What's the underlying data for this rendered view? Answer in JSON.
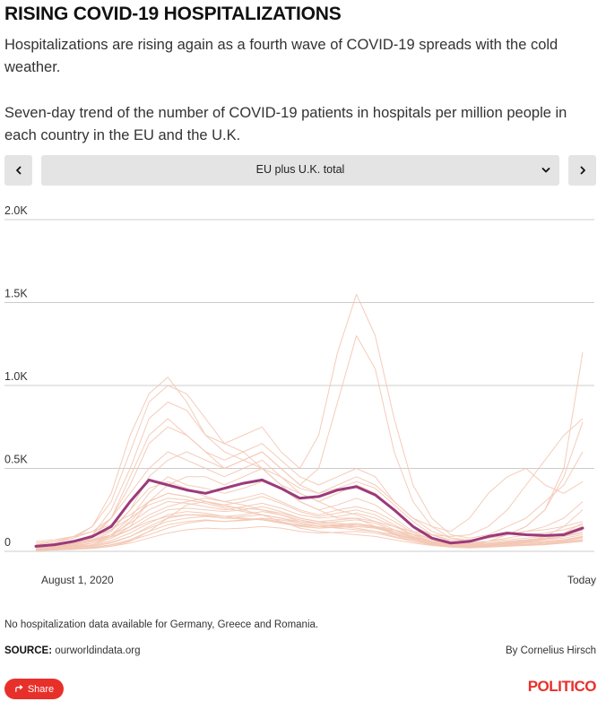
{
  "header": {
    "title": "RISING COVID-19 HOSPITALIZATIONS",
    "subtitle1": "Hospitalizations are rising again as a fourth wave of COVID-19 spreads with the cold weather.",
    "subtitle2": "Seven-day trend of the number of COVID-19 patients in hospitals per million people in each country in the EU and the U.K."
  },
  "controls": {
    "prev_icon": "chevron-left-icon",
    "next_icon": "chevron-right-icon",
    "dropdown_icon": "chevron-down-icon",
    "selected": "EU plus U.K. total"
  },
  "colors": {
    "highlight": "#9b3a7b",
    "background_series": "#f3c6b2",
    "grid": "#cccccc",
    "brand": "#e8302a"
  },
  "chart_data": {
    "type": "line",
    "x_start_label": "August 1, 2020",
    "x_end_label": "Today",
    "ylim": [
      0,
      2000
    ],
    "yticks": [
      {
        "value": 0,
        "label": "0"
      },
      {
        "value": 500,
        "label": "0.5K"
      },
      {
        "value": 1000,
        "label": "1.0K"
      },
      {
        "value": 1500,
        "label": "1.5K"
      },
      {
        "value": 2000,
        "label": "2.0K"
      }
    ],
    "x_count": 30,
    "highlight": {
      "name": "EU plus U.K. total",
      "values": [
        30,
        40,
        60,
        90,
        150,
        300,
        430,
        400,
        370,
        350,
        380,
        410,
        430,
        380,
        320,
        330,
        370,
        390,
        340,
        250,
        150,
        80,
        50,
        60,
        90,
        110,
        100,
        95,
        100,
        140
      ]
    },
    "background_series": [
      [
        30,
        50,
        80,
        150,
        350,
        700,
        950,
        1050,
        900,
        700,
        600,
        550,
        500,
        400,
        300,
        250,
        200,
        200,
        150,
        100,
        60,
        40,
        30,
        40,
        60,
        100,
        150,
        250,
        500,
        1200
      ],
      [
        20,
        30,
        50,
        100,
        250,
        500,
        800,
        900,
        850,
        700,
        650,
        700,
        750,
        600,
        500,
        700,
        1200,
        1550,
        1300,
        800,
        400,
        200,
        100,
        80,
        100,
        150,
        200,
        300,
        400,
        600
      ],
      [
        10,
        20,
        40,
        80,
        200,
        450,
        700,
        800,
        700,
        600,
        500,
        550,
        600,
        500,
        400,
        500,
        900,
        1300,
        1100,
        600,
        300,
        150,
        80,
        60,
        80,
        100,
        150,
        250,
        450,
        780
      ],
      [
        40,
        60,
        90,
        150,
        300,
        600,
        900,
        1000,
        950,
        800,
        650,
        600,
        500,
        400,
        350,
        300,
        250,
        220,
        180,
        150,
        120,
        100,
        90,
        100,
        150,
        250,
        400,
        550,
        700,
        800
      ],
      [
        30,
        40,
        60,
        100,
        200,
        400,
        650,
        750,
        700,
        600,
        550,
        600,
        650,
        550,
        450,
        400,
        450,
        500,
        450,
        300,
        200,
        150,
        120,
        200,
        350,
        450,
        500,
        400,
        350,
        420
      ],
      [
        20,
        30,
        40,
        60,
        120,
        250,
        450,
        550,
        600,
        550,
        500,
        550,
        600,
        500,
        400,
        350,
        400,
        450,
        400,
        300,
        200,
        120,
        80,
        70,
        80,
        100,
        120,
        150,
        200,
        300
      ],
      [
        50,
        60,
        80,
        120,
        200,
        350,
        500,
        600,
        550,
        500,
        450,
        500,
        550,
        450,
        350,
        300,
        350,
        400,
        350,
        250,
        150,
        100,
        70,
        60,
        80,
        100,
        120,
        130,
        150,
        180
      ],
      [
        10,
        15,
        20,
        40,
        80,
        150,
        300,
        400,
        450,
        450,
        400,
        450,
        500,
        450,
        380,
        350,
        380,
        420,
        380,
        280,
        180,
        100,
        60,
        50,
        60,
        80,
        100,
        110,
        130,
        160
      ],
      [
        20,
        25,
        30,
        50,
        100,
        200,
        350,
        450,
        400,
        380,
        350,
        380,
        420,
        380,
        300,
        250,
        280,
        320,
        280,
        200,
        120,
        70,
        40,
        30,
        40,
        50,
        60,
        70,
        90,
        120
      ],
      [
        30,
        35,
        45,
        70,
        130,
        250,
        380,
        420,
        380,
        330,
        300,
        320,
        350,
        300,
        250,
        220,
        250,
        270,
        240,
        180,
        110,
        70,
        50,
        45,
        50,
        60,
        70,
        80,
        100,
        130
      ],
      [
        15,
        20,
        30,
        50,
        90,
        180,
        300,
        350,
        330,
        300,
        280,
        300,
        330,
        290,
        240,
        210,
        230,
        250,
        220,
        160,
        100,
        60,
        40,
        35,
        40,
        50,
        60,
        70,
        80,
        100
      ],
      [
        25,
        30,
        40,
        60,
        100,
        170,
        250,
        300,
        290,
        270,
        250,
        270,
        290,
        260,
        220,
        200,
        210,
        230,
        200,
        150,
        100,
        60,
        45,
        40,
        45,
        55,
        65,
        75,
        90,
        110
      ],
      [
        20,
        25,
        35,
        50,
        80,
        130,
        200,
        250,
        260,
        250,
        240,
        250,
        270,
        240,
        200,
        180,
        190,
        200,
        180,
        130,
        90,
        55,
        40,
        35,
        40,
        45,
        55,
        60,
        70,
        90
      ],
      [
        10,
        15,
        20,
        30,
        50,
        90,
        150,
        200,
        220,
        220,
        210,
        220,
        240,
        220,
        190,
        170,
        180,
        190,
        170,
        120,
        80,
        50,
        35,
        30,
        35,
        40,
        45,
        50,
        60,
        80
      ],
      [
        60,
        70,
        90,
        120,
        160,
        220,
        300,
        350,
        330,
        300,
        270,
        260,
        250,
        230,
        200,
        180,
        170,
        160,
        150,
        130,
        100,
        80,
        60,
        55,
        60,
        70,
        80,
        90,
        110,
        150
      ],
      [
        5,
        10,
        15,
        25,
        40,
        70,
        120,
        160,
        180,
        190,
        180,
        190,
        200,
        190,
        170,
        150,
        160,
        170,
        150,
        110,
        70,
        45,
        30,
        25,
        30,
        35,
        40,
        45,
        55,
        70
      ],
      [
        40,
        45,
        55,
        70,
        100,
        150,
        220,
        270,
        300,
        320,
        300,
        280,
        250,
        220,
        180,
        160,
        150,
        140,
        120,
        100,
        80,
        60,
        50,
        45,
        50,
        60,
        70,
        80,
        100,
        130
      ],
      [
        10,
        12,
        15,
        20,
        30,
        60,
        120,
        200,
        280,
        300,
        280,
        250,
        220,
        180,
        140,
        120,
        110,
        100,
        90,
        70,
        50,
        35,
        25,
        20,
        25,
        30,
        35,
        40,
        50,
        60
      ],
      [
        15,
        20,
        25,
        35,
        55,
        90,
        140,
        180,
        200,
        210,
        200,
        210,
        220,
        200,
        170,
        150,
        140,
        130,
        120,
        90,
        60,
        40,
        30,
        28,
        30,
        35,
        40,
        45,
        55,
        70
      ],
      [
        30,
        40,
        60,
        90,
        130,
        200,
        280,
        320,
        310,
        290,
        260,
        240,
        220,
        200,
        180,
        170,
        160,
        150,
        140,
        120,
        90,
        60,
        40,
        35,
        40,
        45,
        50,
        55,
        65,
        85
      ],
      [
        5,
        8,
        12,
        18,
        30,
        50,
        80,
        110,
        130,
        140,
        135,
        140,
        150,
        140,
        120,
        110,
        115,
        120,
        110,
        85,
        60,
        40,
        28,
        24,
        28,
        32,
        38,
        42,
        50,
        65
      ],
      [
        20,
        22,
        28,
        40,
        65,
        110,
        170,
        220,
        240,
        230,
        210,
        200,
        190,
        170,
        150,
        140,
        145,
        150,
        140,
        110,
        75,
        50,
        35,
        30,
        35,
        45,
        60,
        80,
        110,
        170
      ],
      [
        35,
        40,
        50,
        65,
        90,
        130,
        180,
        210,
        220,
        215,
        200,
        195,
        190,
        175,
        160,
        150,
        155,
        160,
        150,
        120,
        85,
        55,
        40,
        35,
        40,
        50,
        55,
        60,
        70,
        90
      ],
      [
        8,
        10,
        14,
        22,
        38,
        65,
        100,
        140,
        170,
        185,
        180,
        185,
        195,
        180,
        155,
        140,
        150,
        160,
        145,
        105,
        70,
        45,
        30,
        26,
        30,
        38,
        55,
        90,
        150,
        250
      ]
    ]
  },
  "footer": {
    "note": "No hospitalization data available for Germany, Greece and Romania.",
    "source_label": "SOURCE:",
    "source_value": "ourworldindata.org",
    "byline": "By Cornelius Hirsch",
    "share_label": "Share",
    "share_icon": "share-icon",
    "logo": "POLITICO"
  }
}
